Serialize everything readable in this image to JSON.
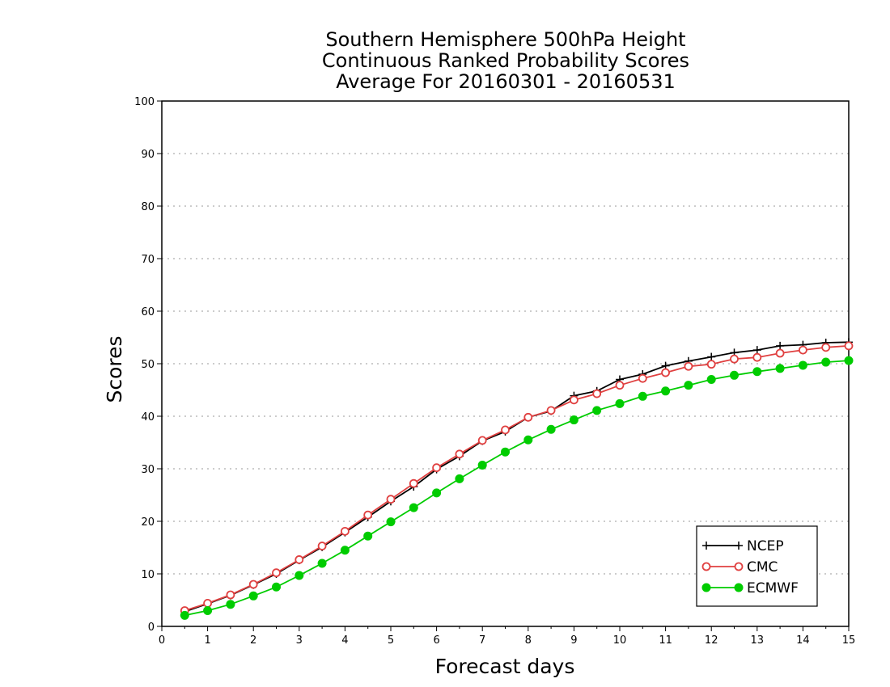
{
  "chart_data": {
    "type": "line",
    "title": [
      "Southern Hemisphere 500hPa Height",
      "Continuous Ranked Probability Scores",
      "Average For 20160301 - 20160531"
    ],
    "xlabel": "Forecast days",
    "ylabel": "Scores",
    "xlim": [
      0,
      15
    ],
    "ylim": [
      0,
      100
    ],
    "xticks": [
      "0",
      "1",
      "2",
      "3",
      "4",
      "5",
      "6",
      "7",
      "8",
      "9",
      "10",
      "11",
      "12",
      "13",
      "14",
      "15"
    ],
    "yticks": [
      "0",
      "10",
      "20",
      "30",
      "40",
      "50",
      "60",
      "70",
      "80",
      "90",
      "100"
    ],
    "grid": true,
    "legend_position": "bottom-right",
    "x": [
      0.5,
      1,
      1.5,
      2,
      2.5,
      3,
      3.5,
      4,
      4.5,
      5,
      5.5,
      6,
      6.5,
      7,
      7.5,
      8,
      8.5,
      9,
      9.5,
      10,
      10.5,
      11,
      11.5,
      12,
      12.5,
      13,
      13.5,
      14,
      14.5,
      15
    ],
    "series": [
      {
        "name": "NCEP",
        "color": "#000000",
        "marker": "plus",
        "values": [
          2.8,
          4.3,
          5.9,
          7.9,
          10.0,
          12.6,
          15.1,
          17.9,
          20.8,
          23.8,
          26.6,
          29.9,
          32.4,
          35.3,
          37.1,
          39.8,
          41.0,
          43.9,
          44.8,
          47.0,
          48.0,
          49.6,
          50.5,
          51.3,
          52.1,
          52.6,
          53.4,
          53.6,
          54.0,
          54.1
        ]
      },
      {
        "name": "CMC",
        "color": "#e04040",
        "marker": "open-circle",
        "values": [
          3.0,
          4.4,
          6.0,
          8.0,
          10.2,
          12.7,
          15.3,
          18.1,
          21.2,
          24.2,
          27.2,
          30.2,
          32.8,
          35.4,
          37.4,
          39.8,
          41.1,
          43.1,
          44.3,
          45.9,
          47.2,
          48.3,
          49.5,
          49.9,
          50.9,
          51.2,
          52.0,
          52.6,
          53.1,
          53.4
        ]
      },
      {
        "name": "ECMWF",
        "color": "#00cc00",
        "marker": "filled-circle",
        "values": [
          2.1,
          3.0,
          4.2,
          5.8,
          7.5,
          9.7,
          12.0,
          14.5,
          17.2,
          19.9,
          22.6,
          25.4,
          28.1,
          30.7,
          33.2,
          35.5,
          37.5,
          39.3,
          41.1,
          42.4,
          43.8,
          44.8,
          45.9,
          47.0,
          47.8,
          48.5,
          49.1,
          49.7,
          50.3,
          50.6
        ]
      }
    ]
  }
}
